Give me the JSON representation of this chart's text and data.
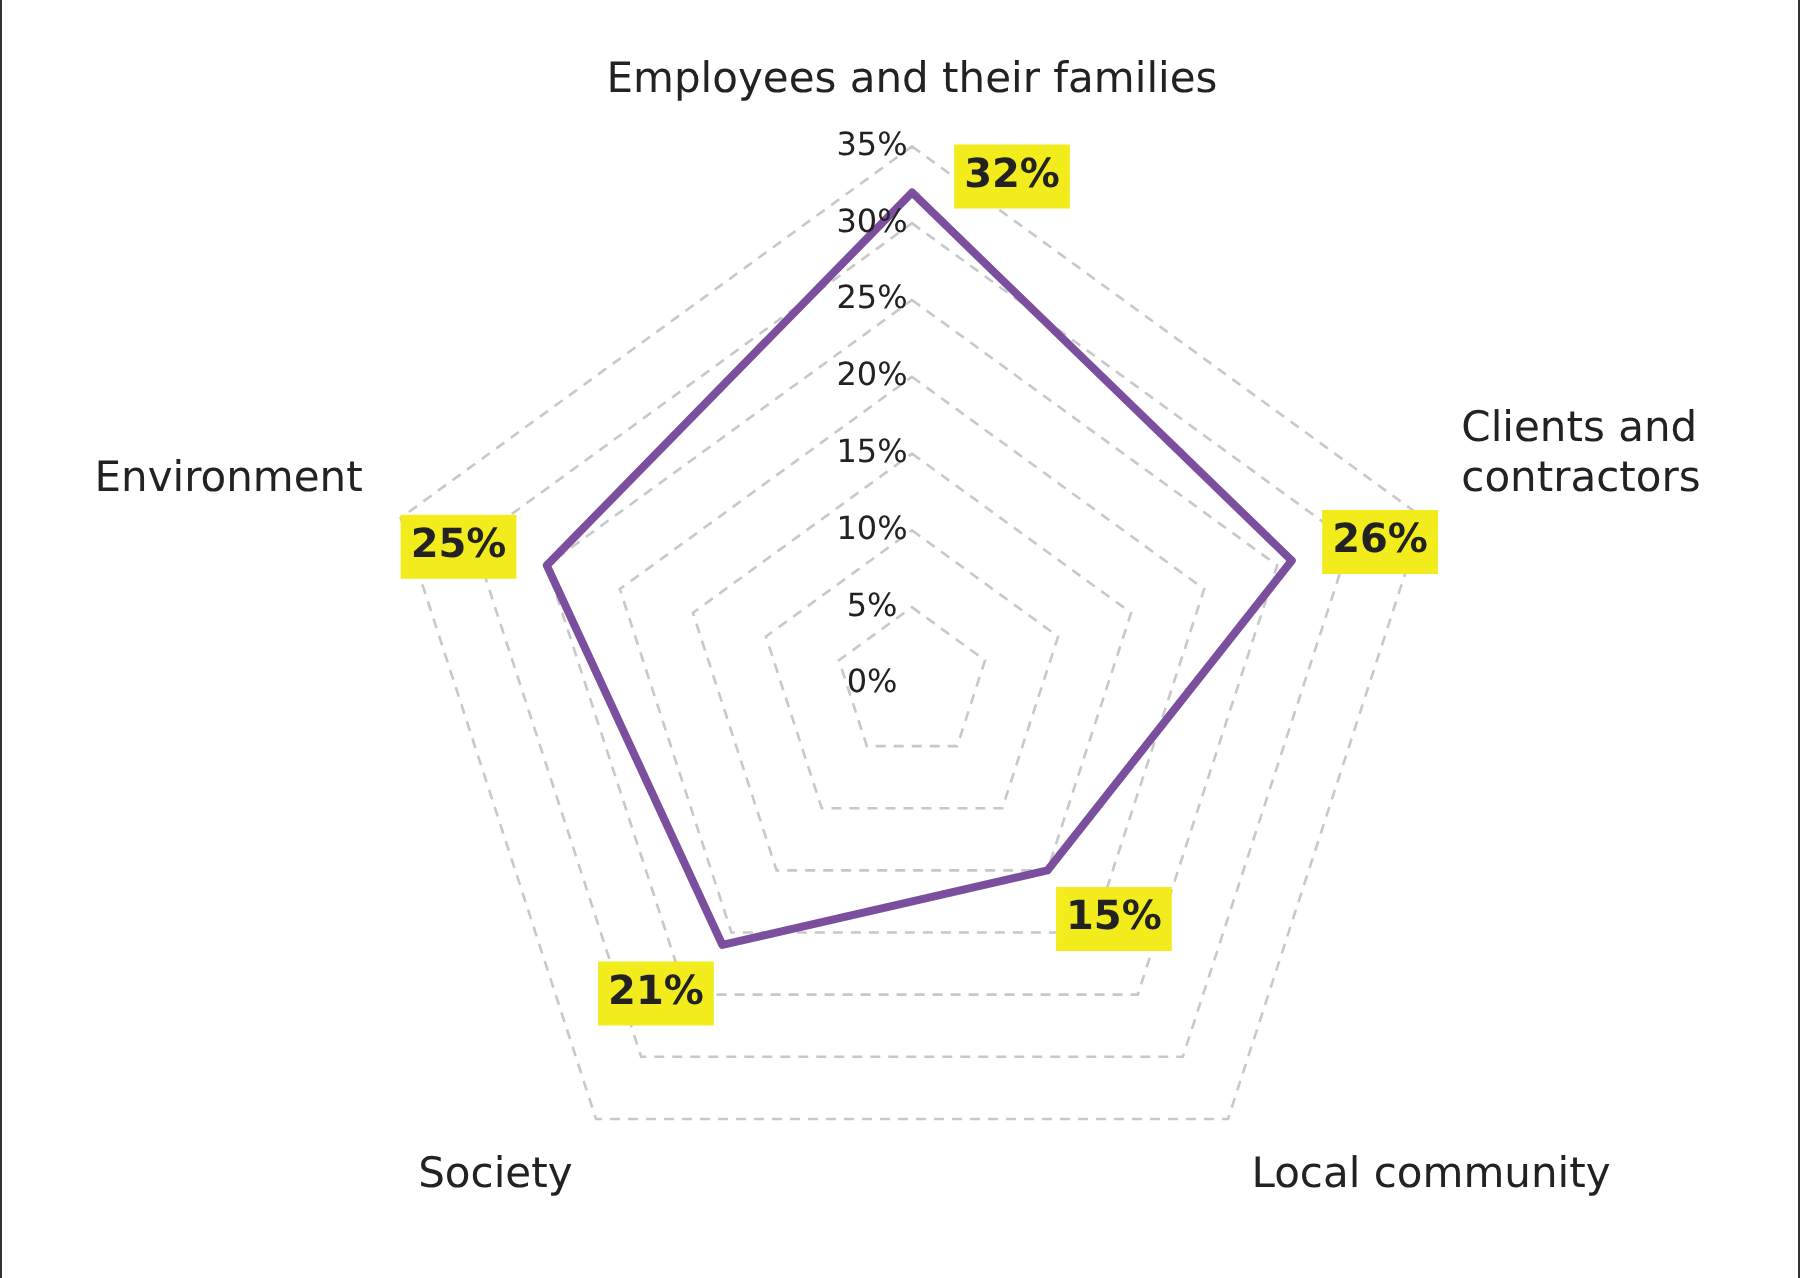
{
  "chart_data": {
    "type": "radar",
    "categories": [
      "Employees and their families",
      "Clients and contractors",
      "Local community",
      "Society",
      "Environment"
    ],
    "series": [
      {
        "color": "#7b4f9e",
        "values": [
          32,
          26,
          15,
          21,
          25
        ]
      }
    ],
    "value_labels": [
      "32%",
      "26%",
      "15%",
      "21%",
      "25%"
    ],
    "ylim": [
      0,
      35
    ],
    "yticks": [
      {
        "value": 0,
        "label": "0%"
      },
      {
        "value": 5,
        "label": "5%"
      },
      {
        "value": 10,
        "label": "10%"
      },
      {
        "value": 15,
        "label": "15%"
      },
      {
        "value": 20,
        "label": "20%"
      },
      {
        "value": 25,
        "label": "25%"
      },
      {
        "value": 30,
        "label": "30%"
      },
      {
        "value": 35,
        "label": "35%"
      }
    ],
    "grid": true,
    "legend": false,
    "marker": "none",
    "line_style": "solid"
  }
}
